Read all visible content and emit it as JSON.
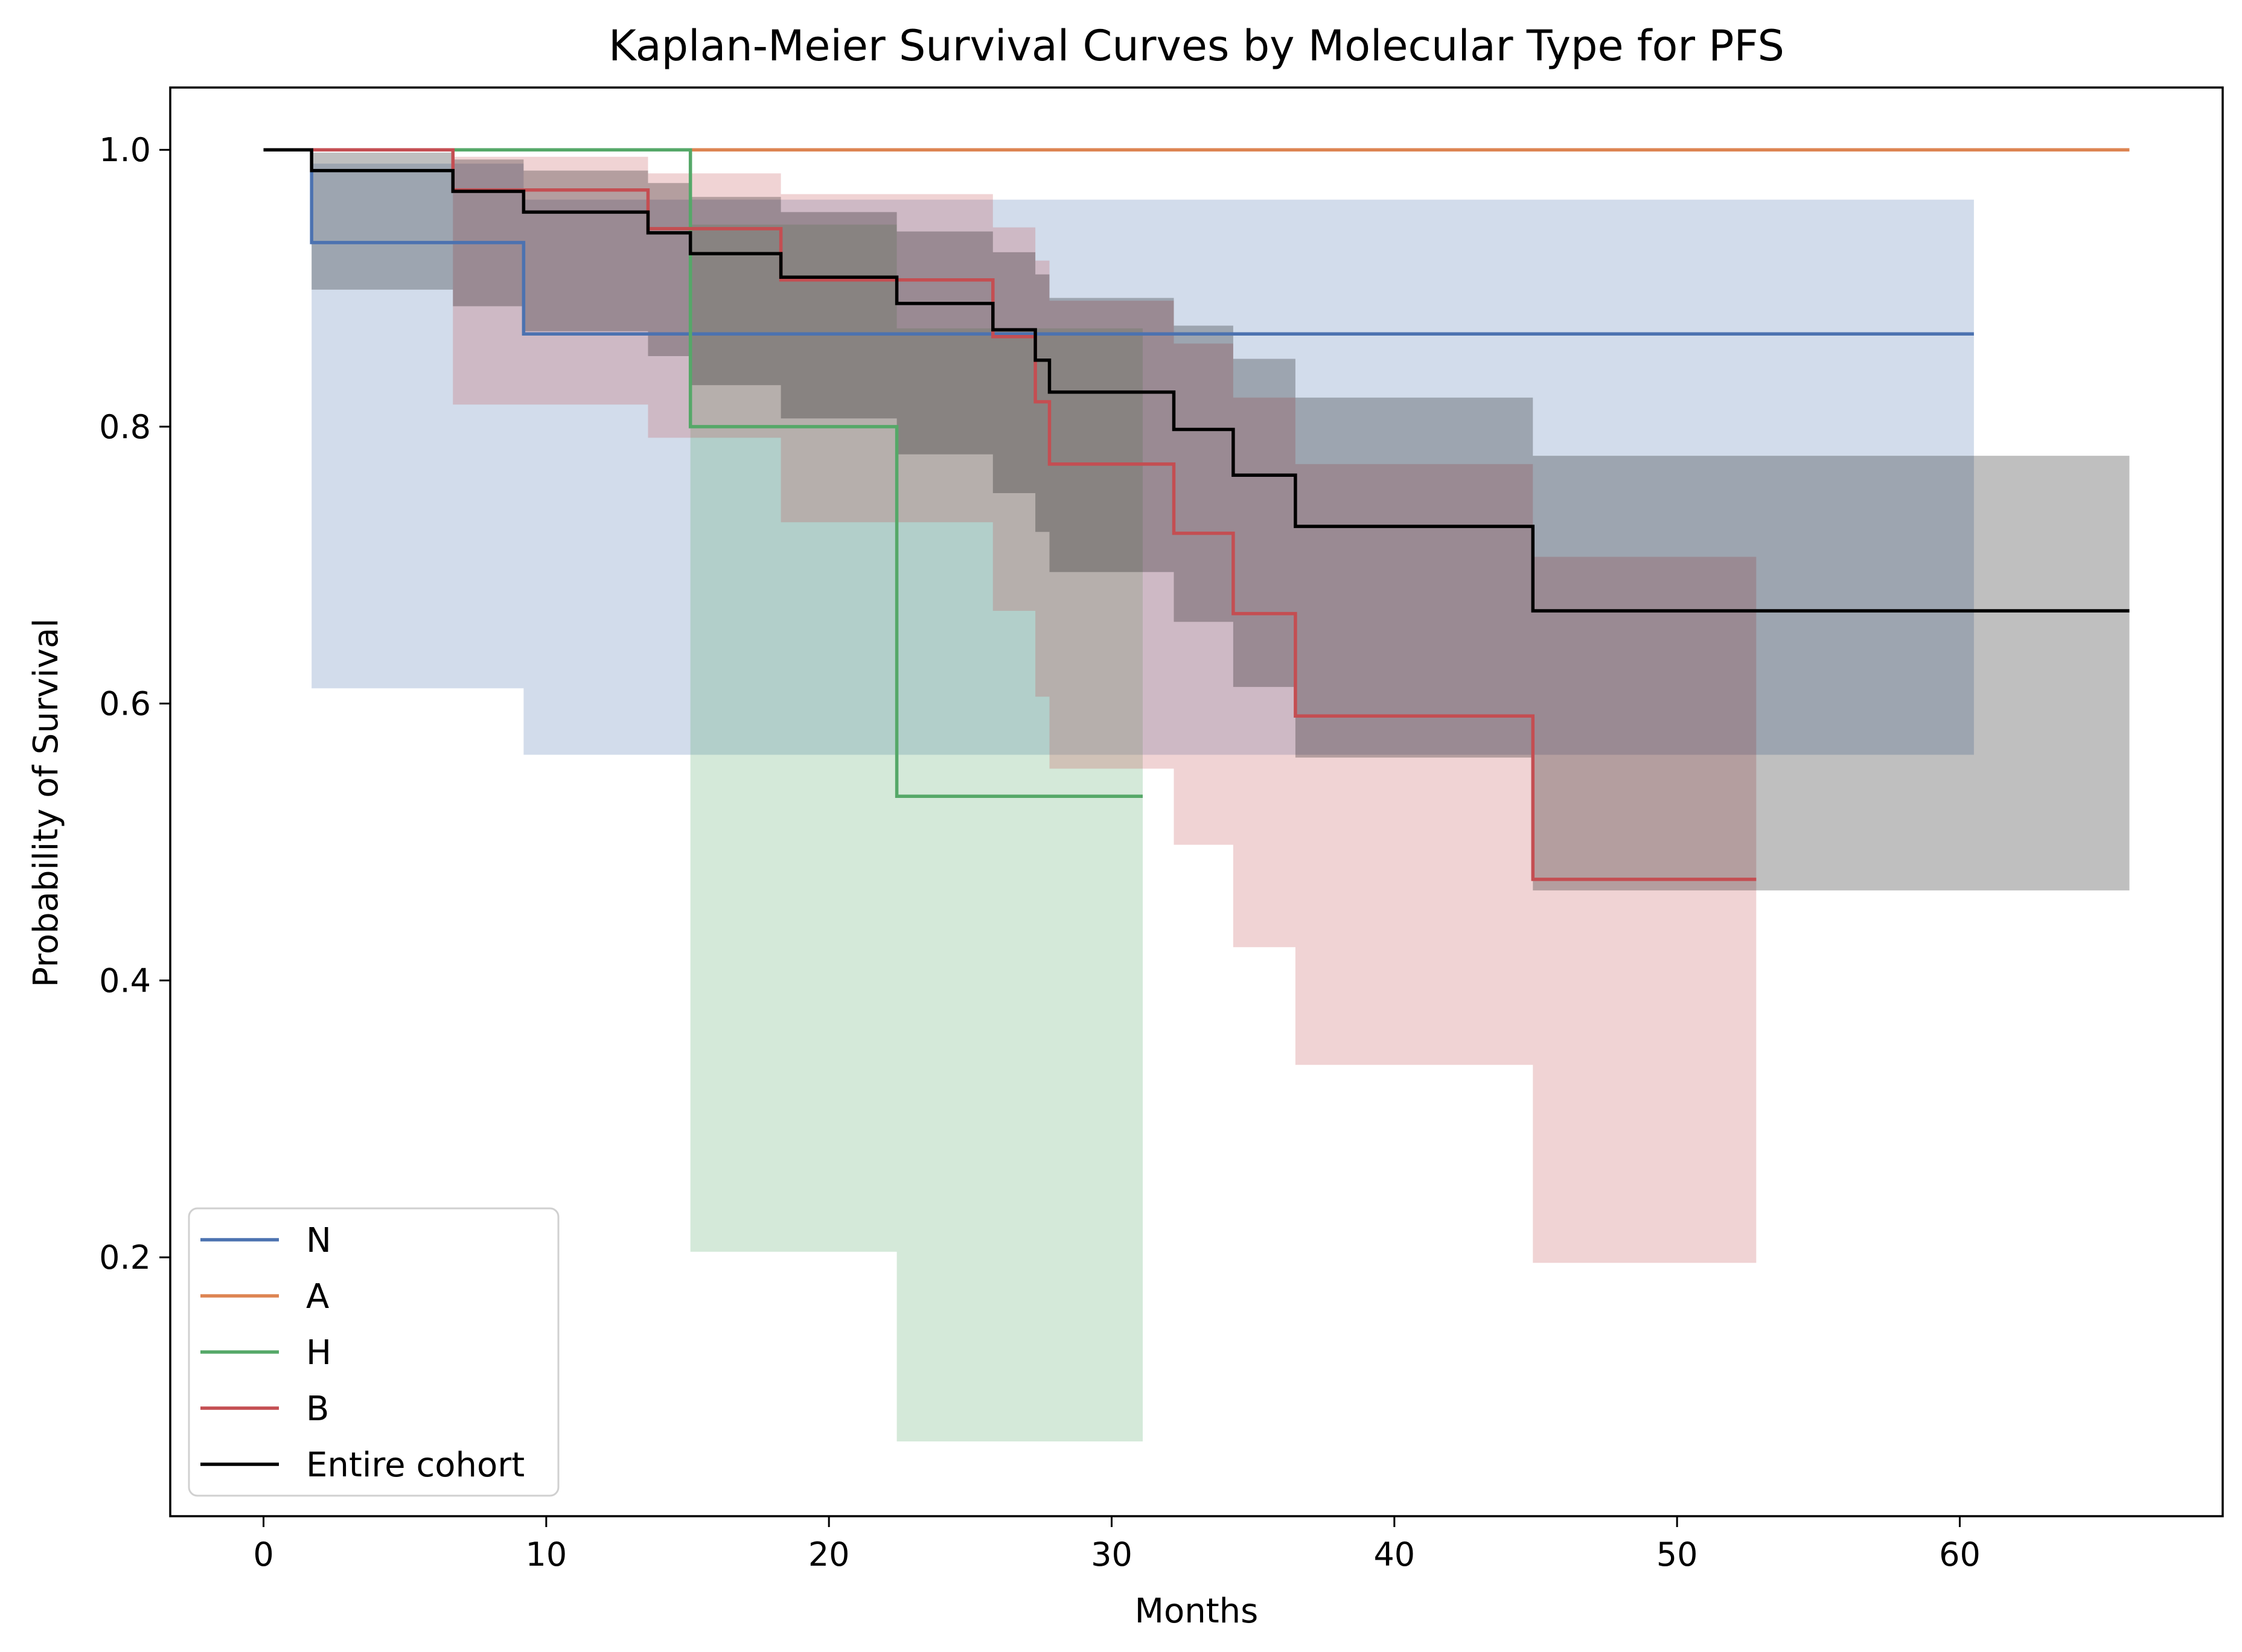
{
  "chart_data": {
    "type": "line",
    "step": "post",
    "title": "Kaplan-Meier Survival Curves by Molecular Type for PFS",
    "xlabel": "Months",
    "ylabel": "Probability of Survival",
    "xlim": [
      -3.3,
      69.3
    ],
    "ylim": [
      0.013,
      1.045
    ],
    "xticks": [
      0,
      10,
      20,
      30,
      40,
      50,
      60
    ],
    "yticks": [
      0.2,
      0.4,
      0.6,
      0.8,
      1.0
    ],
    "xtick_labels": [
      "0",
      "10",
      "20",
      "30",
      "40",
      "50",
      "60"
    ],
    "ytick_labels": [
      "0.2",
      "0.4",
      "0.6",
      "0.8",
      "1.0"
    ],
    "grid": false,
    "legend_position": "lower-left",
    "ci_opacity": 0.25,
    "series": [
      {
        "name": "N",
        "color": "#4c72b0",
        "x": [
          0,
          1.7,
          9.2,
          60.5
        ],
        "y": [
          1.0,
          0.933,
          0.867,
          0.867
        ],
        "ci_x": [
          0,
          1.7,
          9.2,
          60.5
        ],
        "ci_lower": [
          1.0,
          0.611,
          0.563,
          0.563
        ],
        "ci_upper": [
          1.0,
          0.99,
          0.964,
          0.964
        ]
      },
      {
        "name": "A",
        "color": "#dd8452",
        "x": [
          0,
          66.0
        ],
        "y": [
          1.0,
          1.0
        ],
        "ci_x": [],
        "ci_lower": [],
        "ci_upper": []
      },
      {
        "name": "H",
        "color": "#55a868",
        "x": [
          0,
          15.1,
          22.4,
          31.1
        ],
        "y": [
          1.0,
          0.8,
          0.533,
          0.533
        ],
        "ci_x": [
          15.1,
          22.4,
          31.1
        ],
        "ci_lower": [
          0.204,
          0.067,
          0.067
        ],
        "ci_upper": [
          0.946,
          0.871,
          0.871
        ]
      },
      {
        "name": "B",
        "color": "#c44e52",
        "x": [
          0,
          6.7,
          13.6,
          18.3,
          25.8,
          27.3,
          27.8,
          32.2,
          34.3,
          36.5,
          44.9,
          52.8
        ],
        "y": [
          1.0,
          0.971,
          0.943,
          0.906,
          0.865,
          0.818,
          0.773,
          0.723,
          0.665,
          0.591,
          0.473,
          0.473
        ],
        "ci_x": [
          0,
          6.7,
          13.6,
          18.3,
          25.8,
          27.3,
          27.8,
          32.2,
          34.3,
          36.5,
          44.9,
          52.8
        ],
        "ci_lower": [
          1.0,
          0.816,
          0.792,
          0.731,
          0.667,
          0.605,
          0.553,
          0.498,
          0.424,
          0.339,
          0.196,
          0.196
        ],
        "ci_upper": [
          1.0,
          0.995,
          0.983,
          0.968,
          0.944,
          0.92,
          0.891,
          0.86,
          0.821,
          0.773,
          0.706,
          0.706
        ]
      },
      {
        "name": "Entire cohort",
        "color": "#000000",
        "x": [
          0,
          1.7,
          6.7,
          9.2,
          13.6,
          15.1,
          18.3,
          22.4,
          25.8,
          27.3,
          27.8,
          32.2,
          34.3,
          36.5,
          44.9,
          66.0
        ],
        "y": [
          1.0,
          0.985,
          0.97,
          0.955,
          0.94,
          0.925,
          0.908,
          0.889,
          0.87,
          0.848,
          0.825,
          0.798,
          0.765,
          0.728,
          0.667,
          0.667
        ],
        "ci_x": [
          0,
          1.7,
          6.7,
          9.2,
          13.6,
          15.1,
          18.3,
          22.4,
          25.8,
          27.3,
          27.8,
          32.2,
          34.3,
          36.5,
          44.9,
          66.0
        ],
        "ci_lower": [
          1.0,
          0.899,
          0.887,
          0.869,
          0.851,
          0.83,
          0.806,
          0.78,
          0.752,
          0.724,
          0.695,
          0.659,
          0.612,
          0.561,
          0.465,
          0.465
        ],
        "ci_upper": [
          1.0,
          0.998,
          0.993,
          0.985,
          0.976,
          0.966,
          0.955,
          0.941,
          0.926,
          0.91,
          0.893,
          0.873,
          0.849,
          0.821,
          0.779,
          0.805
        ]
      }
    ]
  }
}
